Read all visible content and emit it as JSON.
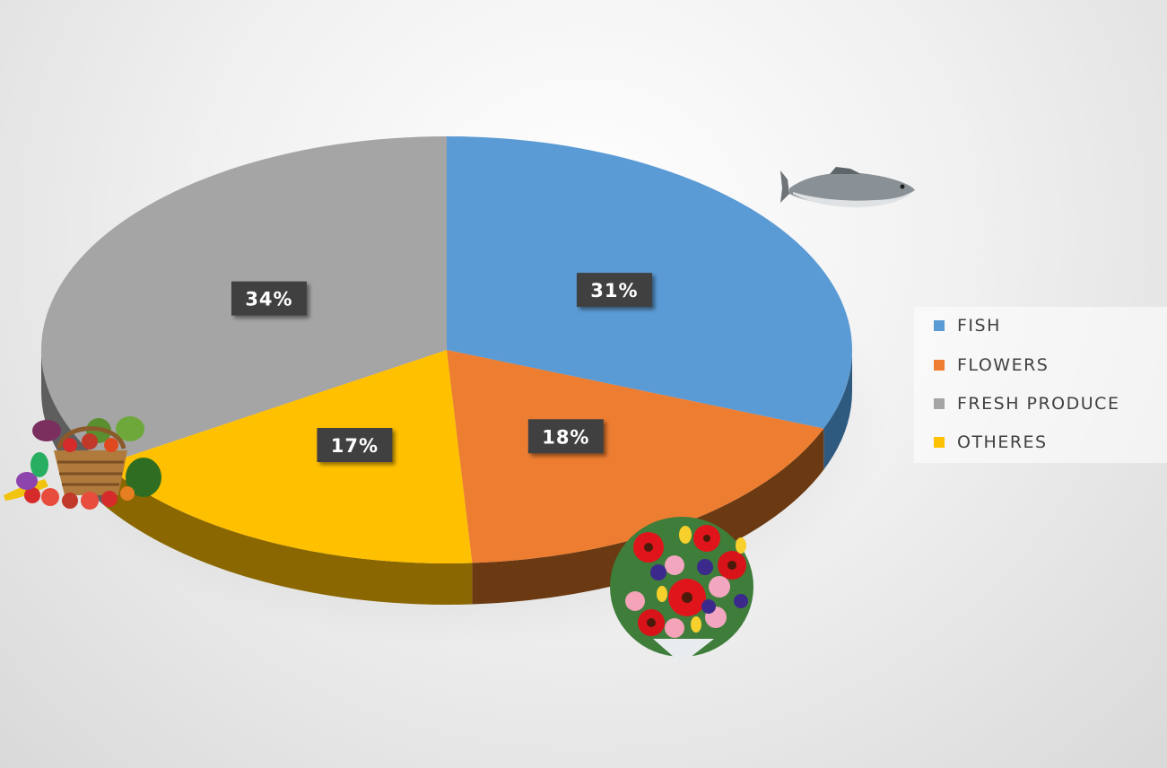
{
  "chart_data": {
    "type": "pie",
    "title": "",
    "style": "3d",
    "legend_position": "right",
    "start_angle_deg": 0,
    "direction": "clockwise",
    "slices": [
      {
        "label": "FISH",
        "value": 31,
        "display": "31%",
        "color": "#5B9BD5",
        "side_color": "#2E5A80",
        "icon": "fish-image"
      },
      {
        "label": "FLOWERS",
        "value": 18,
        "display": "18%",
        "color": "#ED7D31",
        "side_color": "#6B3A12",
        "icon": "flowers-bouquet-image"
      },
      {
        "label": "OTHERES",
        "value": 17,
        "display": "17%",
        "color": "#FFC000",
        "side_color": "#8A6700",
        "icon": ""
      },
      {
        "label": "FRESH PRODUCE",
        "value": 34,
        "display": "34%",
        "color": "#A5A5A5",
        "side_color": "#5E5E5E",
        "icon": "vegetable-basket-image"
      }
    ],
    "legend": [
      {
        "label": "FISH",
        "color": "#5B9BD5"
      },
      {
        "label": "FLOWERS",
        "color": "#ED7D31"
      },
      {
        "label": "FRESH PRODUCE",
        "color": "#A5A5A5"
      },
      {
        "label": "OTHERES",
        "color": "#FFC000"
      }
    ]
  }
}
